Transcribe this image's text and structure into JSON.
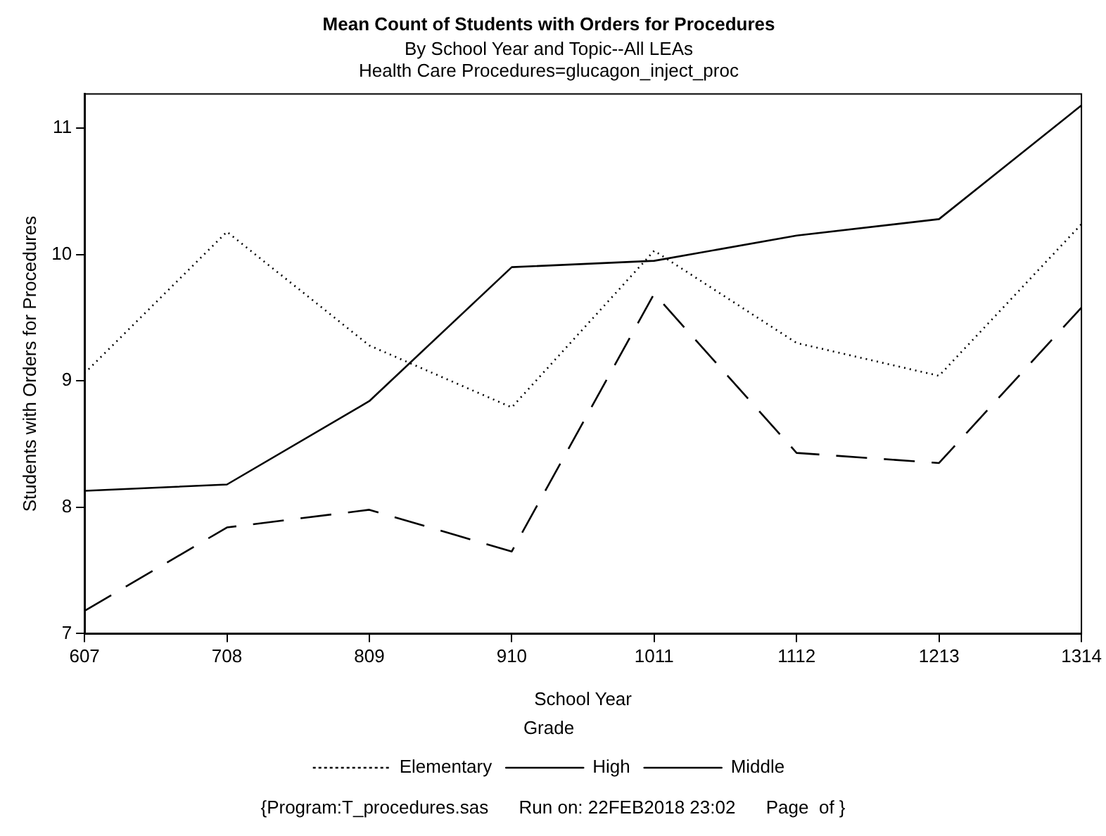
{
  "chart_data": {
    "type": "line",
    "title": "Mean Count of Students with Orders for Procedures",
    "subtitle": "By School Year and Topic--All LEAs\nHealth Care Procedures=glucagon_inject_proc",
    "xlabel": "School Year",
    "ylabel": "Students with Orders for Procedures",
    "legend_title": "Grade",
    "categories": [
      "607",
      "708",
      "809",
      "910",
      "1011",
      "1112",
      "1213",
      "1314"
    ],
    "series": [
      {
        "name": "Elementary",
        "color": "#000000",
        "line_style": "dotted",
        "values": [
          9.06,
          10.18,
          9.28,
          8.79,
          10.03,
          9.3,
          9.04,
          10.24
        ]
      },
      {
        "name": "High",
        "color": "#000000",
        "line_style": "solid",
        "values": [
          8.13,
          8.18,
          8.84,
          9.9,
          9.95,
          10.15,
          10.28,
          11.18
        ]
      },
      {
        "name": "Middle",
        "color": "#000000",
        "line_style": "dashed",
        "values": [
          7.18,
          7.84,
          7.98,
          7.65,
          9.69,
          8.43,
          8.35,
          9.58
        ]
      }
    ],
    "ylim": [
      7,
      11.27
    ],
    "yticks": [
      7,
      8,
      9,
      10,
      11
    ],
    "grid": false,
    "legend": "bottom",
    "marker": "none",
    "annotations": [
      "{Program:T_procedures.sas      Run on: 22FEB2018 23:02      Page  of }"
    ]
  }
}
